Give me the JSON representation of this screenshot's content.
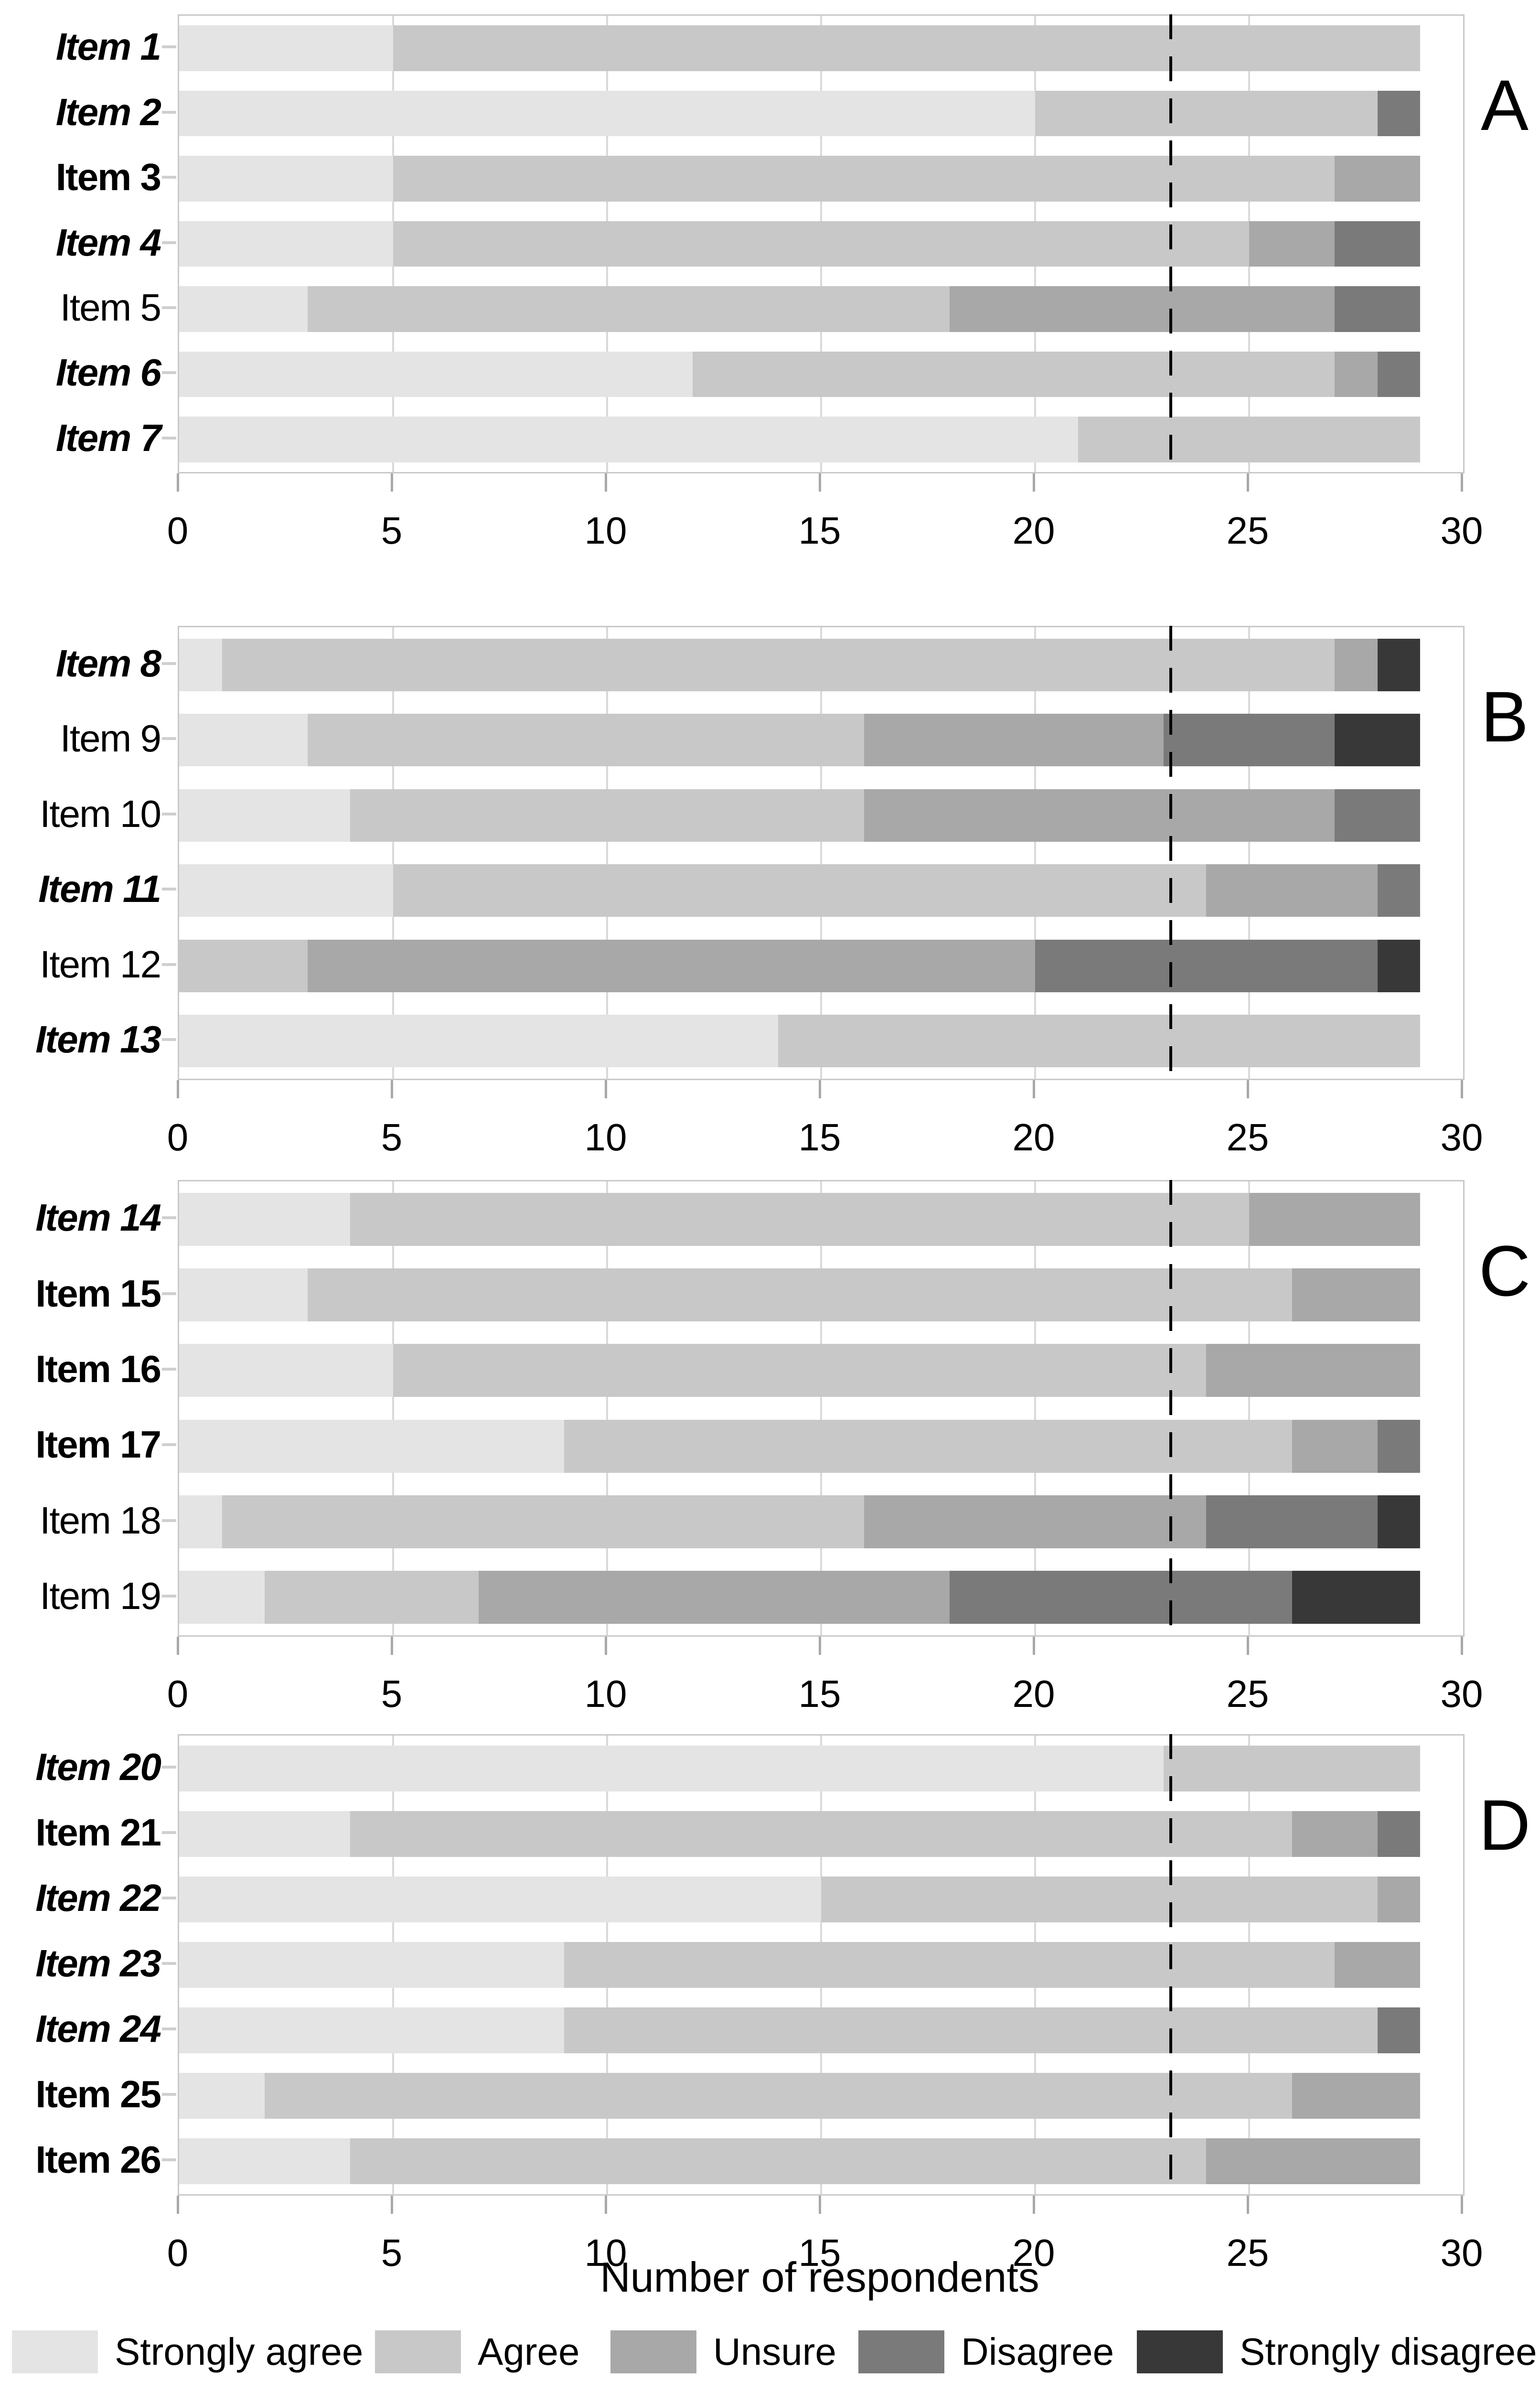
{
  "axis": {
    "title": "Number of respondents",
    "ticks": [
      0,
      5,
      10,
      15,
      20,
      25,
      30
    ],
    "min": 0,
    "max": 30
  },
  "reference_line": {
    "x": 23.2
  },
  "legend": [
    {
      "label": "Strongly agree",
      "color": "#e4e4e4"
    },
    {
      "label": "Agree",
      "color": "#c8c8c8"
    },
    {
      "label": "Unsure",
      "color": "#a8a8a8"
    },
    {
      "label": "Disagree",
      "color": "#7a7a7a"
    },
    {
      "label": "Strongly disagree",
      "color": "#383838"
    }
  ],
  "chart_data": {
    "type": "bar",
    "orientation": "horizontal",
    "stacked": true,
    "grid": "vertical",
    "legend_position": "bottom",
    "xlabel": "Number of respondents",
    "xlim": [
      0,
      30
    ],
    "total_per_item": 29,
    "reference_line_x": 23.2,
    "series_names": [
      "Strongly agree",
      "Agree",
      "Unsure",
      "Disagree",
      "Strongly disagree"
    ],
    "panels": [
      {
        "letter": "A",
        "items": [
          {
            "label": "Item 1",
            "style": "bold-italic",
            "values": [
              5,
              24,
              0,
              0,
              0
            ]
          },
          {
            "label": "Item 2",
            "style": "bold-italic",
            "values": [
              20,
              8,
              0,
              1,
              0
            ]
          },
          {
            "label": "Item 3",
            "style": "bold",
            "values": [
              5,
              22,
              2,
              0,
              0
            ]
          },
          {
            "label": "Item 4",
            "style": "bold-italic",
            "values": [
              5,
              20,
              2,
              2,
              0
            ]
          },
          {
            "label": "Item 5",
            "style": "regular",
            "values": [
              3,
              15,
              9,
              2,
              0
            ]
          },
          {
            "label": "Item 6",
            "style": "bold-italic",
            "values": [
              12,
              15,
              1,
              1,
              0
            ]
          },
          {
            "label": "Item 7",
            "style": "bold-italic",
            "values": [
              21,
              8,
              0,
              0,
              0
            ]
          }
        ]
      },
      {
        "letter": "B",
        "items": [
          {
            "label": "Item 8",
            "style": "bold-italic",
            "values": [
              1,
              26,
              1,
              0,
              1
            ]
          },
          {
            "label": "Item 9",
            "style": "regular",
            "values": [
              3,
              13,
              7,
              4,
              2
            ]
          },
          {
            "label": "Item 10",
            "style": "regular",
            "values": [
              4,
              12,
              11,
              2,
              0
            ]
          },
          {
            "label": "Item 11",
            "style": "bold-italic",
            "values": [
              5,
              19,
              4,
              1,
              0
            ]
          },
          {
            "label": "Item 12",
            "style": "regular",
            "values": [
              0,
              3,
              17,
              8,
              1
            ]
          },
          {
            "label": "Item 13",
            "style": "bold-italic",
            "values": [
              14,
              15,
              0,
              0,
              0
            ]
          }
        ]
      },
      {
        "letter": "C",
        "items": [
          {
            "label": "Item 14",
            "style": "bold-italic",
            "values": [
              4,
              21,
              4,
              0,
              0
            ]
          },
          {
            "label": "Item 15",
            "style": "bold",
            "values": [
              3,
              23,
              3,
              0,
              0
            ]
          },
          {
            "label": "Item 16",
            "style": "bold",
            "values": [
              5,
              19,
              5,
              0,
              0
            ]
          },
          {
            "label": "Item 17",
            "style": "bold",
            "values": [
              9,
              17,
              2,
              1,
              0
            ]
          },
          {
            "label": "Item 18",
            "style": "regular",
            "values": [
              1,
              15,
              8,
              4,
              1
            ]
          },
          {
            "label": "Item 19",
            "style": "regular",
            "values": [
              2,
              5,
              11,
              8,
              3
            ]
          }
        ]
      },
      {
        "letter": "D",
        "items": [
          {
            "label": "Item 20",
            "style": "bold-italic",
            "values": [
              23,
              6,
              0,
              0,
              0
            ]
          },
          {
            "label": "Item 21",
            "style": "bold",
            "values": [
              4,
              22,
              2,
              1,
              0
            ]
          },
          {
            "label": "Item 22",
            "style": "bold-italic",
            "values": [
              15,
              13,
              1,
              0,
              0
            ]
          },
          {
            "label": "Item 23",
            "style": "bold-italic",
            "values": [
              9,
              18,
              2,
              0,
              0
            ]
          },
          {
            "label": "Item 24",
            "style": "bold-italic",
            "values": [
              9,
              19,
              0,
              1,
              0
            ]
          },
          {
            "label": "Item 25",
            "style": "bold",
            "values": [
              2,
              24,
              3,
              0,
              0
            ]
          },
          {
            "label": "Item 26",
            "style": "bold",
            "values": [
              4,
              20,
              5,
              0,
              0
            ]
          }
        ]
      }
    ]
  }
}
